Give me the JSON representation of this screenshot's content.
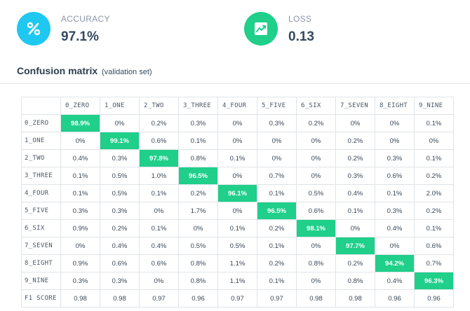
{
  "metrics": {
    "accuracy": {
      "label": "ACCURACY",
      "value": "97.1%",
      "icon": "percent-icon",
      "color": "#1ec8f0"
    },
    "loss": {
      "label": "LOSS",
      "value": "0.13",
      "icon": "chart-trend-icon",
      "color": "#1fcf8a"
    }
  },
  "confusion": {
    "title": "Confusion matrix",
    "subtitle": "(validation set)",
    "highlight_color": "#1fcf8a",
    "columns": [
      "0_ZERO",
      "1_ONE",
      "2_TWO",
      "3_THREE",
      "4_FOUR",
      "5_FIVE",
      "6_SIX",
      "7_SEVEN",
      "8_EIGHT",
      "9_NINE"
    ],
    "rows": [
      {
        "label": "0_ZERO",
        "values": [
          "98.9%",
          "0%",
          "0.2%",
          "0.3%",
          "0%",
          "0.3%",
          "0.2%",
          "0%",
          "0%",
          "0.1%"
        ]
      },
      {
        "label": "1_ONE",
        "values": [
          "0%",
          "99.1%",
          "0.6%",
          "0.1%",
          "0%",
          "0%",
          "0%",
          "0.2%",
          "0%",
          "0%"
        ]
      },
      {
        "label": "2_TWO",
        "values": [
          "0.4%",
          "0.3%",
          "97.8%",
          "0.8%",
          "0.1%",
          "0%",
          "0%",
          "0.2%",
          "0.3%",
          "0.1%"
        ]
      },
      {
        "label": "3_THREE",
        "values": [
          "0.1%",
          "0.5%",
          "1.0%",
          "96.5%",
          "0%",
          "0.7%",
          "0%",
          "0.3%",
          "0.6%",
          "0.2%"
        ]
      },
      {
        "label": "4_FOUR",
        "values": [
          "0.1%",
          "0.5%",
          "0.1%",
          "0.2%",
          "96.1%",
          "0.1%",
          "0.5%",
          "0.4%",
          "0.1%",
          "2.0%"
        ]
      },
      {
        "label": "5_FIVE",
        "values": [
          "0.3%",
          "0.3%",
          "0%",
          "1.7%",
          "0%",
          "96.5%",
          "0.6%",
          "0.1%",
          "0.3%",
          "0.2%"
        ]
      },
      {
        "label": "6_SIX",
        "values": [
          "0.9%",
          "0.2%",
          "0.1%",
          "0%",
          "0.1%",
          "0.2%",
          "98.1%",
          "0%",
          "0.4%",
          "0.1%"
        ]
      },
      {
        "label": "7_SEVEN",
        "values": [
          "0%",
          "0.4%",
          "0.4%",
          "0.5%",
          "0.5%",
          "0.1%",
          "0%",
          "97.7%",
          "0%",
          "0.6%"
        ]
      },
      {
        "label": "8_EIGHT",
        "values": [
          "0.9%",
          "0.6%",
          "0.6%",
          "0.8%",
          "1.1%",
          "0.2%",
          "0.8%",
          "0.2%",
          "94.2%",
          "0.7%"
        ]
      },
      {
        "label": "9_NINE",
        "values": [
          "0.3%",
          "0.3%",
          "0%",
          "0.8%",
          "1.1%",
          "0.1%",
          "0%",
          "0.8%",
          "0.4%",
          "96.3%"
        ]
      }
    ],
    "f1": {
      "label": "F1 SCORE",
      "values": [
        "0.98",
        "0.98",
        "0.97",
        "0.96",
        "0.97",
        "0.97",
        "0.98",
        "0.98",
        "0.96",
        "0.96"
      ]
    }
  }
}
